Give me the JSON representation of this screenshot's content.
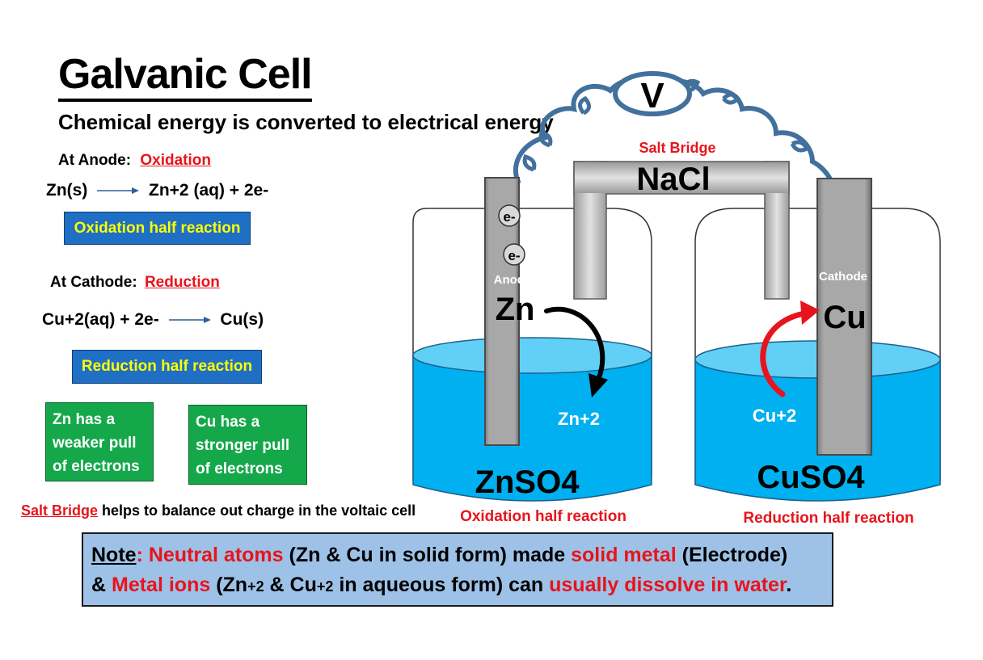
{
  "title": "Galvanic Cell",
  "subtitle": "Chemical energy is converted to electrical energy",
  "anode_section": {
    "label": "At Anode:",
    "process": "Oxidation",
    "reactant": "Zn(s)",
    "products": "Zn+2 (aq)  + 2e-",
    "half_reaction_box": "Oxidation half reaction"
  },
  "cathode_section": {
    "label": "At Cathode:",
    "process": "Reduction",
    "reactants": "Cu+2(aq)  + 2e-",
    "product": "Cu(s)",
    "half_reaction_box": "Reduction half reaction"
  },
  "zn_pull": {
    "line1": "Zn has a",
    "line2": "weaker pull",
    "line3": "of electrons"
  },
  "cu_pull": {
    "line1": "Cu has a",
    "line2": "stronger pull",
    "line3": "of electrons"
  },
  "salt_bridge_note": {
    "term": "Salt Bridge",
    "text": " helps to balance out charge in the voltaic cell"
  },
  "diagram": {
    "voltmeter": "V",
    "salt_bridge_label": "Salt Bridge",
    "salt": "NaCl",
    "electron_1": "e-",
    "electron_2": "e-",
    "anode_label": "Anode",
    "anode_metal": "Zn",
    "cathode_label": "Cathode",
    "cathode_metal": "Cu",
    "zn_ion": "Zn+2",
    "cu_ion": "Cu+2",
    "left_solution": "ZnSO4",
    "right_solution": "CuSO4",
    "left_caption": "Oxidation half reaction",
    "right_caption": "Reduction half reaction"
  },
  "note": {
    "label": "Note",
    "colon": ":",
    "p1": "Neutral atoms",
    "p2": " (Zn & Cu in solid form) made ",
    "p3": "solid metal",
    "p4": " (Electrode)",
    "p5": "& ",
    "p6": "Metal ions",
    "p7": " (Zn",
    "p8": "+2",
    "p9": " & Cu",
    "p10": "+2",
    "p11": " in aqueous form) can ",
    "p12": "usually dissolve in water",
    "p13": "."
  },
  "colors": {
    "accent_red": "#e8141b",
    "box_blue": "#1f6fc4",
    "box_text_yellow": "#ffff00",
    "box_green": "#14a84a",
    "solution_blue": "#00b0f0",
    "note_bg": "#9ec2e7",
    "wire_blue": "#41719c"
  }
}
